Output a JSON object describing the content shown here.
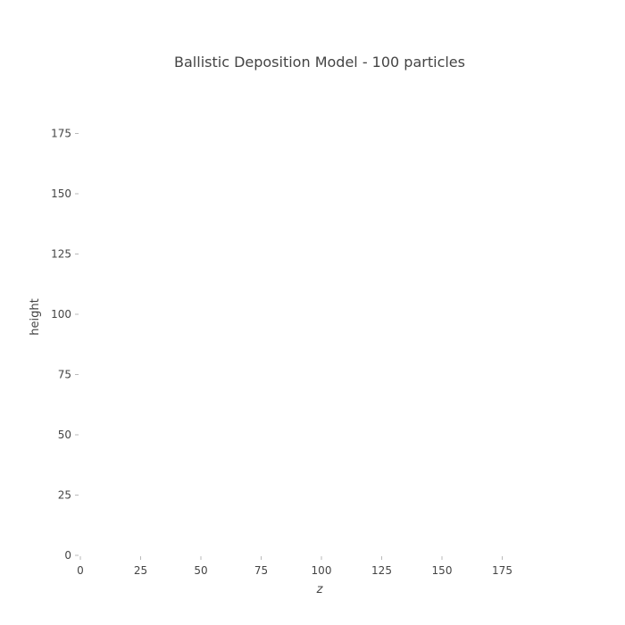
{
  "chart_data": {
    "type": "scatter",
    "title": "Ballistic Deposition Model - 100 particles",
    "xlabel": "z",
    "ylabel": "height",
    "xlim": [
      0,
      200
    ],
    "ylim": [
      0,
      200
    ],
    "x_ticks": [
      0,
      25,
      50,
      75,
      100,
      125,
      150,
      175
    ],
    "y_ticks": [
      0,
      25,
      50,
      75,
      100,
      125,
      150,
      175
    ],
    "grid": false,
    "legend": "none",
    "points": []
  }
}
